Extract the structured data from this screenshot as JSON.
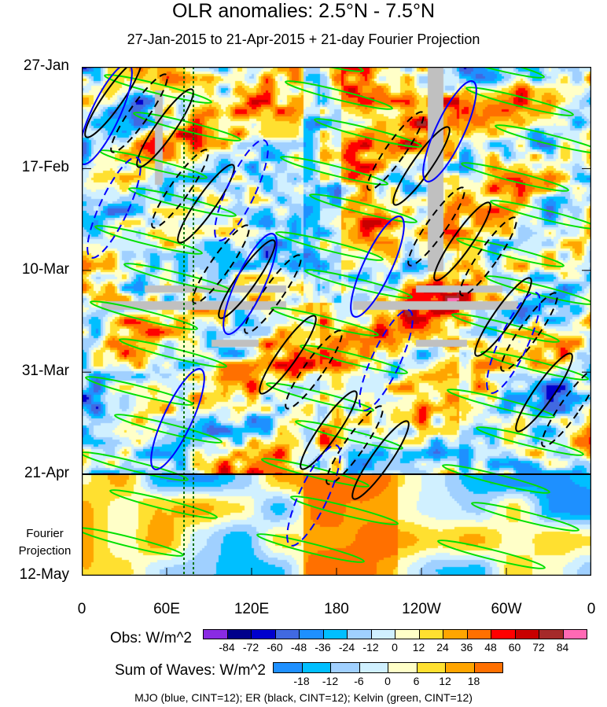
{
  "chart_data": {
    "type": "heatmap",
    "title": "OLR anomalies: 2.5°N - 7.5°N",
    "subtitle": "27-Jan-2015 to 21-Apr-2015 + 21-day Fourier Projection",
    "x_ticks": [
      "0",
      "60E",
      "120E",
      "180",
      "120W",
      "60W",
      "0"
    ],
    "x_range_deg": [
      0,
      360
    ],
    "y_ticks": [
      "27-Jan",
      "17-Feb",
      "10-Mar",
      "31-Mar",
      "21-Apr",
      "12-May"
    ],
    "y_side_label": [
      "Fourier",
      "Projection"
    ],
    "obs_end_date": "21-Apr",
    "obs_colorbar": {
      "label": "Obs: W/m^2",
      "levels": [
        "-84",
        "-72",
        "-60",
        "-48",
        "-36",
        "-24",
        "-12",
        "0",
        "12",
        "24",
        "36",
        "48",
        "60",
        "72",
        "84"
      ],
      "colors": [
        "#8a2be2",
        "#00008b",
        "#0000cd",
        "#4169e1",
        "#1e90ff",
        "#00bfff",
        "#a0d0ff",
        "#d0f0ff",
        "#ffffc8",
        "#ffe030",
        "#ffa500",
        "#ff7000",
        "#ff0000",
        "#c80000",
        "#a52a2a",
        "#ff69b4"
      ]
    },
    "waves_colorbar": {
      "label": "Sum of Waves: W/m^2",
      "levels": [
        "-18",
        "-12",
        "-6",
        "0",
        "6",
        "12",
        "18"
      ],
      "colors": [
        "#1e90ff",
        "#00bfff",
        "#a0d0ff",
        "#d0f0ff",
        "#ffffc8",
        "#ffe030",
        "#ffa500",
        "#ff7000"
      ]
    },
    "contour_note": "MJO (blue, CINT=12); ER (black, CINT=12); Kelvin (green, CINT=12)",
    "contour_colors": {
      "mjo": "#0000ff",
      "er": "#000000",
      "kelvin": "#00e000"
    },
    "missing_color": "#c0c0c0"
  }
}
